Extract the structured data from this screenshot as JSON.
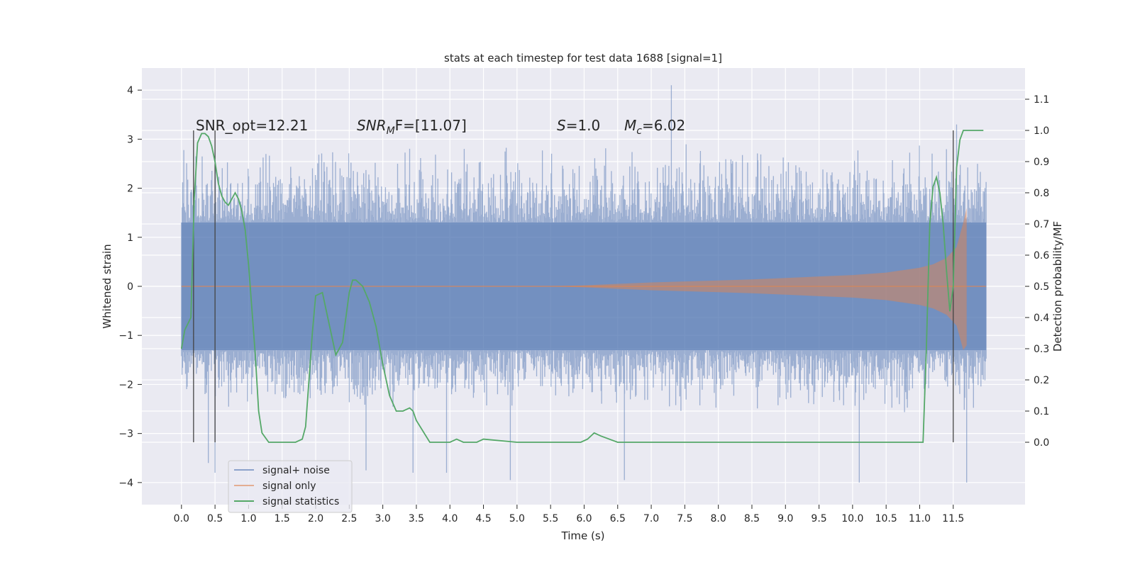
{
  "chart_data": {
    "type": "line",
    "title": "stats at each timestep for test data 1688 [signal=1]",
    "xlabel": "Time (s)",
    "ylabel": "Whitened strain",
    "ylabel_right": "Detection probability/MF",
    "xlim": [
      -0.59,
      12.57
    ],
    "ylim": [
      -4.45,
      4.45
    ],
    "ylim_right": [
      -0.2,
      1.2
    ],
    "x_ticks": [
      0.0,
      0.5,
      1.0,
      1.5,
      2.0,
      2.5,
      3.0,
      3.5,
      4.0,
      4.5,
      5.0,
      5.5,
      6.0,
      6.5,
      7.0,
      7.5,
      8.0,
      8.5,
      9.0,
      9.5,
      10.0,
      10.5,
      11.0,
      11.5
    ],
    "x_tick_labels": [
      "0.0",
      "0.5",
      "1.0",
      "1.5",
      "2.0",
      "2.5",
      "3.0",
      "3.5",
      "4.0",
      "4.5",
      "5.0",
      "5.5",
      "6.0",
      "6.5",
      "7.0",
      "7.5",
      "8.0",
      "8.5",
      "9.0",
      "9.5",
      "10.0",
      "10.5",
      "11.0",
      "11.5"
    ],
    "y_ticks": [
      -4,
      -3,
      -2,
      -1,
      0,
      1,
      2,
      3,
      4
    ],
    "y_tick_labels": [
      "−4",
      "−3",
      "−2",
      "−1",
      "0",
      "1",
      "2",
      "3",
      "4"
    ],
    "y_right_ticks": [
      0.0,
      0.1,
      0.2,
      0.3,
      0.4,
      0.5,
      0.6,
      0.7,
      0.8,
      0.9,
      1.0,
      1.1
    ],
    "y_right_tick_labels": [
      "0.0",
      "0.1",
      "0.2",
      "0.3",
      "0.4",
      "0.5",
      "0.6",
      "0.7",
      "0.8",
      "0.9",
      "1.0",
      "1.1"
    ],
    "grid": true,
    "legend_position": "bottom-left",
    "legend": [
      "signal+ noise",
      "signal only",
      "signal statistics"
    ],
    "annotations": {
      "snr_opt": "SNR_opt=12.21",
      "snr_mf_sym": "SNR",
      "snr_mf_sub": "M",
      "snr_mf_rest": "F=[11.07]",
      "s_sym": "S",
      "s_val": "=1.0",
      "mc_sym": "M",
      "mc_sub": "c",
      "mc_val": "=6.02"
    },
    "vertical_markers_x": [
      0.18,
      0.5,
      11.5
    ],
    "series": [
      {
        "name": "signal+ noise",
        "color": "#4c72b0",
        "noise_x_range": [
          0.0,
          11.99
        ],
        "typical_envelope": [
          -1.3,
          1.3
        ],
        "typical_peak_range": [
          -2.5,
          2.8
        ],
        "extreme_points": [
          {
            "x": 0.4,
            "y": -3.6
          },
          {
            "x": 0.5,
            "y": -3.8
          },
          {
            "x": 2.75,
            "y": -3.75
          },
          {
            "x": 3.45,
            "y": -3.8
          },
          {
            "x": 3.95,
            "y": -3.8
          },
          {
            "x": 4.9,
            "y": -3.95
          },
          {
            "x": 6.6,
            "y": -3.95
          },
          {
            "x": 7.3,
            "y": 4.1
          },
          {
            "x": 10.1,
            "y": -4.0
          },
          {
            "x": 11.7,
            "y": -4.0
          },
          {
            "x": 11.55,
            "y": 3.3
          }
        ]
      },
      {
        "name": "signal only",
        "color": "#dd8452",
        "envelope_x": [
          0.0,
          5.5,
          6.0,
          6.5,
          7.0,
          7.5,
          8.0,
          8.5,
          9.0,
          9.5,
          10.0,
          10.5,
          11.0,
          11.2,
          11.4,
          11.55,
          11.65,
          11.7
        ],
        "envelope_amp": [
          0.0,
          0.0,
          0.02,
          0.05,
          0.08,
          0.1,
          0.12,
          0.14,
          0.17,
          0.2,
          0.23,
          0.28,
          0.38,
          0.45,
          0.58,
          0.8,
          1.3,
          1.6
        ]
      },
      {
        "name": "signal statistics",
        "color": "#55a868",
        "x": [
          0.0,
          0.05,
          0.14,
          0.19,
          0.24,
          0.3,
          0.35,
          0.4,
          0.45,
          0.5,
          0.55,
          0.6,
          0.65,
          0.7,
          0.8,
          0.85,
          0.9,
          0.95,
          1.0,
          1.1,
          1.15,
          1.2,
          1.3,
          1.4,
          1.5,
          1.6,
          1.7,
          1.8,
          1.85,
          1.9,
          1.95,
          2.0,
          2.1,
          2.2,
          2.3,
          2.4,
          2.5,
          2.55,
          2.6,
          2.7,
          2.8,
          2.9,
          3.0,
          3.1,
          3.2,
          3.3,
          3.4,
          3.45,
          3.5,
          3.7,
          3.9,
          4.0,
          4.1,
          4.2,
          4.3,
          4.4,
          4.5,
          5.0,
          5.5,
          5.8,
          5.95,
          6.05,
          6.15,
          6.25,
          6.5,
          7.0,
          7.1,
          7.2,
          7.5,
          7.6,
          7.7,
          8.0,
          8.5,
          8.6,
          8.7,
          9.0,
          9.2,
          9.5,
          10.0,
          10.5,
          11.0,
          11.05,
          11.1,
          11.15,
          11.2,
          11.25,
          11.3,
          11.35,
          11.4,
          11.45,
          11.5,
          11.55,
          11.6,
          11.65,
          11.7,
          11.8,
          11.85,
          11.9,
          11.95
        ],
        "y": [
          0.3,
          0.36,
          0.4,
          0.78,
          0.96,
          0.99,
          0.99,
          0.98,
          0.95,
          0.9,
          0.83,
          0.79,
          0.77,
          0.76,
          0.8,
          0.78,
          0.74,
          0.68,
          0.57,
          0.28,
          0.1,
          0.03,
          0.0,
          0.0,
          0.0,
          0.0,
          0.0,
          0.01,
          0.05,
          0.2,
          0.35,
          0.47,
          0.48,
          0.38,
          0.28,
          0.32,
          0.48,
          0.52,
          0.52,
          0.5,
          0.45,
          0.37,
          0.25,
          0.15,
          0.1,
          0.1,
          0.11,
          0.1,
          0.07,
          0.0,
          0.0,
          0.0,
          0.01,
          0.0,
          0.0,
          0.0,
          0.01,
          0.0,
          0.0,
          0.0,
          0.0,
          0.01,
          0.03,
          0.02,
          0.0,
          0.0,
          0.0,
          0.0,
          0.0,
          0.0,
          0.0,
          0.0,
          0.0,
          0.0,
          0.0,
          0.0,
          0.0,
          0.0,
          0.0,
          0.0,
          0.0,
          0.0,
          0.3,
          0.7,
          0.82,
          0.85,
          0.8,
          0.7,
          0.55,
          0.42,
          0.5,
          0.88,
          0.97,
          1.0,
          1.0,
          1.0,
          1.0,
          1.0,
          1.0
        ]
      }
    ]
  }
}
